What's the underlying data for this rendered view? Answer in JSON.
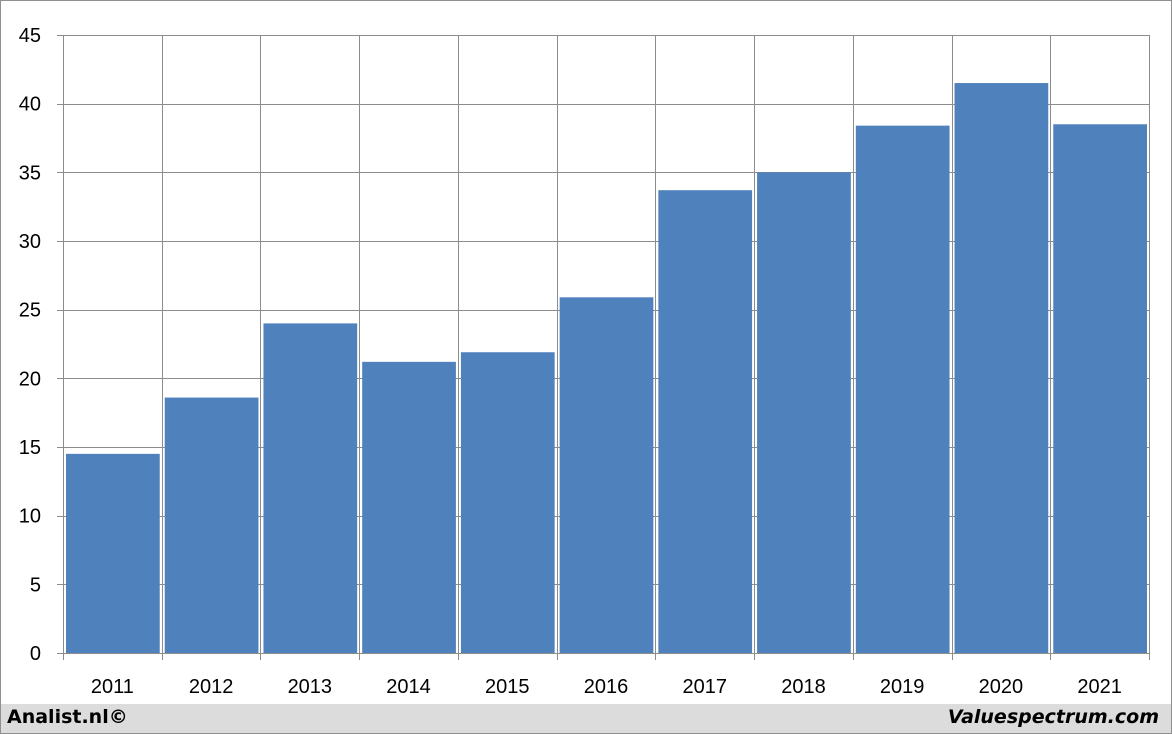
{
  "chart_data": {
    "type": "bar",
    "categories": [
      "2011",
      "2012",
      "2013",
      "2014",
      "2015",
      "2016",
      "2017",
      "2018",
      "2019",
      "2020",
      "2021"
    ],
    "values": [
      14.5,
      18.6,
      24.0,
      21.2,
      21.9,
      25.9,
      33.7,
      35.0,
      38.4,
      41.5,
      38.5
    ],
    "ylim": [
      0,
      45
    ],
    "yticks": [
      0,
      5,
      10,
      15,
      20,
      25,
      30,
      35,
      40,
      45
    ],
    "title": "",
    "xlabel": "",
    "ylabel": "",
    "grid": true,
    "bar_color": "#4f81bd",
    "grid_color": "#8c8c8c"
  },
  "footer": {
    "left_text": "Analist.nl©",
    "right_text": "Valuespectrum.com"
  }
}
